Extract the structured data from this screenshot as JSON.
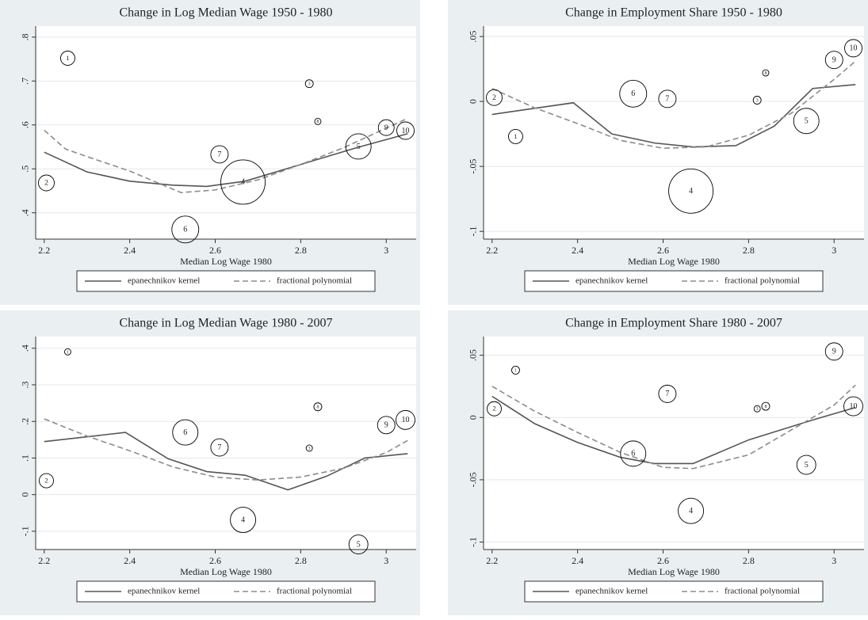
{
  "chart_data": [
    {
      "type": "scatter",
      "title": "Change in Log Median Wage 1950 - 1980",
      "x_label": "Median Log Wage 1980",
      "xlim": [
        2.18,
        3.07
      ],
      "xticks": [
        2.2,
        2.4,
        2.6,
        2.8,
        3
      ],
      "ylim": [
        0.34,
        0.825
      ],
      "yticks": [
        {
          "value": 0.4,
          "label": ".4"
        },
        {
          "value": 0.5,
          "label": ".5"
        },
        {
          "value": 0.6,
          "label": ".6"
        },
        {
          "value": 0.7,
          "label": ".7"
        },
        {
          "value": 0.8,
          "label": ".8"
        }
      ],
      "grid": true,
      "point_color": "#000000",
      "points": {
        "labels": [
          "1",
          "2",
          "3",
          "4",
          "5",
          "6",
          "7",
          "8",
          "9",
          "10"
        ],
        "x": [
          2.255,
          2.205,
          2.82,
          2.665,
          2.935,
          2.53,
          2.61,
          2.84,
          3.0,
          3.045
        ],
        "y": [
          0.752,
          0.468,
          0.694,
          0.47,
          0.551,
          0.362,
          0.533,
          0.608,
          0.594,
          0.587
        ],
        "sizes": [
          9,
          10,
          5,
          28,
          16,
          17,
          11,
          4,
          10,
          11
        ]
      },
      "series": [
        {
          "name": "epanechnikov kernel",
          "color": "#555555",
          "style": "solid",
          "x": [
            2.2,
            2.3,
            2.4,
            2.5,
            2.58,
            2.67,
            2.8,
            2.93,
            3.05
          ],
          "values": [
            0.538,
            0.493,
            0.472,
            0.463,
            0.46,
            0.472,
            0.51,
            0.548,
            0.58
          ]
        },
        {
          "name": "fractional polynomial",
          "color": "#8c8c8c",
          "style": "dashed",
          "x": [
            2.2,
            2.25,
            2.3,
            2.4,
            2.52,
            2.6,
            2.7,
            2.8,
            2.9,
            3.05
          ],
          "values": [
            0.588,
            0.545,
            0.528,
            0.495,
            0.446,
            0.452,
            0.475,
            0.51,
            0.548,
            0.615
          ]
        }
      ]
    },
    {
      "type": "scatter",
      "title": "Change in Employment Share 1950 - 1980",
      "x_label": "Median Log Wage 1980",
      "xlim": [
        2.18,
        3.07
      ],
      "xticks": [
        2.2,
        2.4,
        2.6,
        2.8,
        3
      ],
      "ylim": [
        -0.106,
        0.058
      ],
      "yticks": [
        {
          "value": -0.1,
          "label": "-.1"
        },
        {
          "value": -0.05,
          "label": "-.05"
        },
        0,
        {
          "value": 0.05,
          "label": ".05"
        }
      ],
      "grid": true,
      "point_color": "#000000",
      "points": {
        "labels": [
          "1",
          "2",
          "3",
          "4",
          "5",
          "6",
          "7",
          "8",
          "9",
          "10"
        ],
        "x": [
          2.255,
          2.205,
          2.82,
          2.665,
          2.935,
          2.53,
          2.61,
          2.84,
          3.0,
          3.045
        ],
        "y": [
          -0.027,
          0.003,
          0.001,
          -0.069,
          -0.015,
          0.006,
          0.002,
          0.022,
          0.032,
          0.041
        ],
        "sizes": [
          9,
          10,
          5,
          28,
          16,
          17,
          11,
          4,
          11,
          11
        ]
      },
      "series": [
        {
          "name": "epanechnikov kernel",
          "color": "#555555",
          "style": "solid",
          "x": [
            2.2,
            2.39,
            2.48,
            2.58,
            2.67,
            2.77,
            2.86,
            2.95,
            3.05
          ],
          "values": [
            -0.01,
            -0.001,
            -0.025,
            -0.032,
            -0.035,
            -0.034,
            -0.019,
            0.01,
            0.013
          ]
        },
        {
          "name": "fractional polynomial",
          "color": "#8c8c8c",
          "style": "dashed",
          "x": [
            2.2,
            2.3,
            2.4,
            2.5,
            2.6,
            2.7,
            2.8,
            2.9,
            3.0,
            3.05
          ],
          "values": [
            0.01,
            -0.005,
            -0.017,
            -0.03,
            -0.036,
            -0.035,
            -0.026,
            -0.009,
            0.017,
            0.031
          ]
        }
      ]
    },
    {
      "type": "scatter",
      "title": "Change in Log Median Wage 1980 - 2007",
      "x_label": "Median Log Wage 1980",
      "xlim": [
        2.18,
        3.07
      ],
      "xticks": [
        2.2,
        2.4,
        2.6,
        2.8,
        3
      ],
      "ylim": [
        -0.15,
        0.432
      ],
      "yticks": [
        {
          "value": -0.1,
          "label": "-.1"
        },
        0,
        {
          "value": 0.1,
          "label": ".1"
        },
        {
          "value": 0.2,
          "label": ".2"
        },
        {
          "value": 0.3,
          "label": ".3"
        },
        {
          "value": 0.4,
          "label": ".4"
        }
      ],
      "grid": true,
      "point_color": "#000000",
      "points": {
        "labels": [
          "1",
          "2",
          "3",
          "4",
          "5",
          "6",
          "7",
          "8",
          "9",
          "10"
        ],
        "x": [
          2.255,
          2.205,
          2.82,
          2.665,
          2.935,
          2.53,
          2.61,
          2.84,
          3.0,
          3.045
        ],
        "y": [
          0.39,
          0.038,
          0.127,
          -0.069,
          -0.136,
          0.17,
          0.129,
          0.24,
          0.19,
          0.204
        ],
        "sizes": [
          4,
          9,
          4,
          16,
          12,
          16,
          11,
          5,
          11,
          12
        ]
      },
      "series": [
        {
          "name": "epanechnikov kernel",
          "color": "#555555",
          "style": "solid",
          "x": [
            2.2,
            2.39,
            2.49,
            2.58,
            2.67,
            2.77,
            2.86,
            2.95,
            3.05
          ],
          "values": [
            0.145,
            0.17,
            0.098,
            0.063,
            0.053,
            0.013,
            0.05,
            0.1,
            0.112
          ]
        },
        {
          "name": "fractional polynomial",
          "color": "#8c8c8c",
          "style": "dashed",
          "x": [
            2.2,
            2.3,
            2.4,
            2.5,
            2.6,
            2.7,
            2.8,
            2.9,
            3.0,
            3.05
          ],
          "values": [
            0.207,
            0.16,
            0.12,
            0.076,
            0.048,
            0.04,
            0.048,
            0.072,
            0.115,
            0.148
          ]
        }
      ]
    },
    {
      "type": "scatter",
      "title": "Change in Employment Share 1980 - 2007",
      "x_label": "Median Log Wage 1980",
      "xlim": [
        2.18,
        3.07
      ],
      "xticks": [
        2.2,
        2.4,
        2.6,
        2.8,
        3
      ],
      "ylim": [
        -0.106,
        0.065
      ],
      "yticks": [
        {
          "value": -0.1,
          "label": "-.1"
        },
        {
          "value": -0.05,
          "label": "-.05"
        },
        0,
        {
          "value": 0.05,
          "label": ".05"
        }
      ],
      "grid": true,
      "point_color": "#000000",
      "points": {
        "labels": [
          "1",
          "2",
          "3",
          "4",
          "5",
          "6",
          "7",
          "8",
          "9",
          "10"
        ],
        "x": [
          2.255,
          2.205,
          2.82,
          2.665,
          2.935,
          2.53,
          2.61,
          2.84,
          3.0,
          3.045
        ],
        "y": [
          0.038,
          0.007,
          0.007,
          -0.075,
          -0.038,
          -0.029,
          0.019,
          0.009,
          0.053,
          0.009
        ],
        "sizes": [
          5,
          9,
          4,
          16,
          12,
          16,
          11,
          5,
          11,
          12
        ]
      },
      "series": [
        {
          "name": "epanechnikov kernel",
          "color": "#555555",
          "style": "solid",
          "x": [
            2.2,
            2.3,
            2.4,
            2.5,
            2.58,
            2.67,
            2.8,
            2.95,
            3.05
          ],
          "values": [
            0.017,
            -0.005,
            -0.02,
            -0.032,
            -0.037,
            -0.037,
            -0.018,
            -0.002,
            0.008
          ]
        },
        {
          "name": "fractional polynomial",
          "color": "#8c8c8c",
          "style": "dashed",
          "x": [
            2.2,
            2.3,
            2.4,
            2.5,
            2.6,
            2.67,
            2.8,
            2.9,
            3.0,
            3.05
          ],
          "values": [
            0.025,
            0.005,
            -0.012,
            -0.028,
            -0.04,
            -0.041,
            -0.03,
            -0.01,
            0.01,
            0.026
          ]
        }
      ]
    }
  ]
}
